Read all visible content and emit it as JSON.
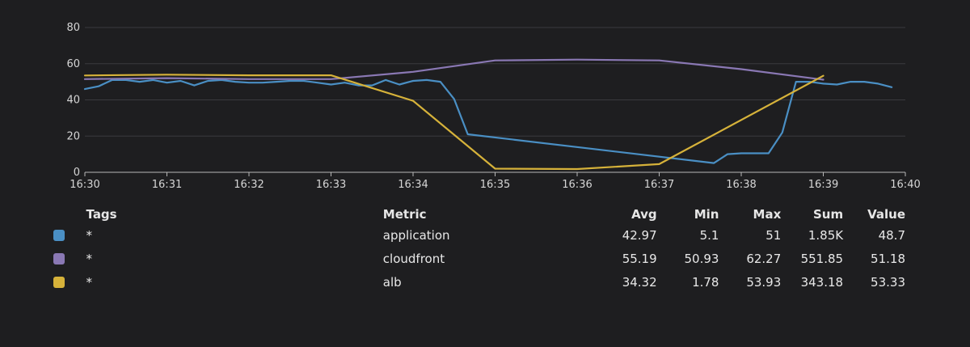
{
  "chart_data": {
    "type": "line",
    "title": "",
    "xlabel": "",
    "ylabel": "",
    "ylim": [
      0,
      80
    ],
    "yticks": [
      0,
      20,
      40,
      60,
      80
    ],
    "xlim": [
      "16:30",
      "16:40"
    ],
    "xticks": [
      "16:30",
      "16:31",
      "16:32",
      "16:33",
      "16:34",
      "16:35",
      "16:36",
      "16:37",
      "16:38",
      "16:39",
      "16:40"
    ],
    "grid": true,
    "legend": "table-below",
    "series": [
      {
        "name": "application",
        "color": "#4a8fc4",
        "points": [
          [
            "16:30:00",
            46
          ],
          [
            "16:30:10",
            47.5
          ],
          [
            "16:30:20",
            51
          ],
          [
            "16:30:30",
            51
          ],
          [
            "16:30:40",
            50
          ],
          [
            "16:30:50",
            51
          ],
          [
            "16:31:00",
            49.5
          ],
          [
            "16:31:10",
            50.5
          ],
          [
            "16:31:20",
            48
          ],
          [
            "16:31:30",
            50.5
          ],
          [
            "16:31:40",
            51
          ],
          [
            "16:31:50",
            50
          ],
          [
            "16:32:00",
            49.5
          ],
          [
            "16:32:10",
            49.5
          ],
          [
            "16:32:20",
            50
          ],
          [
            "16:32:30",
            50.5
          ],
          [
            "16:32:40",
            50.5
          ],
          [
            "16:32:50",
            49.5
          ],
          [
            "16:33:00",
            48.5
          ],
          [
            "16:33:10",
            49.5
          ],
          [
            "16:33:20",
            48
          ],
          [
            "16:33:30",
            48
          ],
          [
            "16:33:40",
            51
          ],
          [
            "16:33:50",
            48.5
          ],
          [
            "16:34:00",
            50.5
          ],
          [
            "16:34:10",
            51
          ],
          [
            "16:34:20",
            50
          ],
          [
            "16:34:30",
            40.5
          ],
          [
            "16:34:40",
            21
          ],
          [
            "16:37:40",
            5.1
          ],
          [
            "16:37:50",
            10
          ],
          [
            "16:38:00",
            10.5
          ],
          [
            "16:38:10",
            10.5
          ],
          [
            "16:38:20",
            10.5
          ],
          [
            "16:38:30",
            22
          ],
          [
            "16:38:40",
            50
          ],
          [
            "16:38:50",
            50
          ],
          [
            "16:39:00",
            49
          ],
          [
            "16:39:10",
            48.5
          ],
          [
            "16:39:20",
            50
          ],
          [
            "16:39:30",
            50
          ],
          [
            "16:39:40",
            49
          ],
          [
            "16:39:50",
            47
          ]
        ]
      },
      {
        "name": "cloudfront",
        "color": "#8a78b4",
        "points": [
          [
            "16:30:00",
            51.5
          ],
          [
            "16:31:00",
            52
          ],
          [
            "16:32:00",
            51.5
          ],
          [
            "16:33:00",
            51.5
          ],
          [
            "16:34:00",
            55.5
          ],
          [
            "16:35:00",
            61.8
          ],
          [
            "16:36:00",
            62.27
          ],
          [
            "16:37:00",
            61.8
          ],
          [
            "16:38:00",
            57
          ],
          [
            "16:39:00",
            51.18
          ]
        ]
      },
      {
        "name": "alb",
        "color": "#d6b23a",
        "points": [
          [
            "16:30:00",
            53.5
          ],
          [
            "16:31:00",
            53.93
          ],
          [
            "16:32:00",
            53.6
          ],
          [
            "16:33:00",
            53.6
          ],
          [
            "16:34:00",
            39.5
          ],
          [
            "16:35:00",
            2
          ],
          [
            "16:36:00",
            1.78
          ],
          [
            "16:37:00",
            4.5
          ],
          [
            "16:39:00",
            53.33
          ]
        ]
      }
    ]
  },
  "legend": {
    "headers": {
      "tags": "Tags",
      "metric": "Metric",
      "avg": "Avg",
      "min": "Min",
      "max": "Max",
      "sum": "Sum",
      "value": "Value"
    },
    "rows": [
      {
        "color": "#4a8fc4",
        "tag": "*",
        "metric": "application",
        "avg": "42.97",
        "min": "5.1",
        "max": "51",
        "sum": "1.85K",
        "value": "48.7"
      },
      {
        "color": "#8a78b4",
        "tag": "*",
        "metric": "cloudfront",
        "avg": "55.19",
        "min": "50.93",
        "max": "62.27",
        "sum": "551.85",
        "value": "51.18"
      },
      {
        "color": "#d6b23a",
        "tag": "*",
        "metric": "alb",
        "avg": "34.32",
        "min": "1.78",
        "max": "53.93",
        "sum": "343.18",
        "value": "53.33"
      }
    ]
  }
}
